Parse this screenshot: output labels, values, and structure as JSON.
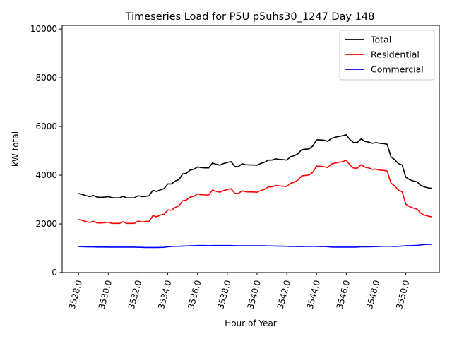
{
  "chart_data": {
    "type": "line",
    "title": "Timeseries Load for P5U p5uhs30_1247  Day 148",
    "xlabel": "Hour of Year",
    "ylabel": "kW total",
    "xlim": [
      3526.9,
      3552.25
    ],
    "ylim": [
      0,
      10150
    ],
    "x_start": 3528.0,
    "x_step": 0.25,
    "xticks": [
      3528.0,
      3530.0,
      3532.0,
      3534.0,
      3536.0,
      3538.0,
      3540.0,
      3542.0,
      3544.0,
      3546.0,
      3548.0,
      3550.0
    ],
    "xtick_labels": [
      "3528.0",
      "3530.0",
      "3532.0",
      "3534.0",
      "3536.0",
      "3538.0",
      "3540.0",
      "3542.0",
      "3544.0",
      "3546.0",
      "3548.0",
      "3550.0"
    ],
    "yticks": [
      0,
      2000,
      4000,
      6000,
      8000,
      10000
    ],
    "ytick_labels": [
      "0",
      "2000",
      "4000",
      "6000",
      "8000",
      "10000"
    ],
    "legend_position": "top-right",
    "series": [
      {
        "name": "Total",
        "color": "#000000",
        "values": [
          3250,
          3210,
          3160,
          3120,
          3170,
          3100,
          3090,
          3100,
          3120,
          3080,
          3070,
          3070,
          3130,
          3070,
          3070,
          3070,
          3160,
          3120,
          3130,
          3160,
          3380,
          3330,
          3400,
          3450,
          3640,
          3640,
          3760,
          3820,
          4050,
          4080,
          4210,
          4240,
          4340,
          4310,
          4300,
          4300,
          4500,
          4450,
          4410,
          4480,
          4520,
          4560,
          4360,
          4350,
          4470,
          4430,
          4420,
          4420,
          4410,
          4480,
          4530,
          4620,
          4620,
          4670,
          4650,
          4640,
          4620,
          4760,
          4800,
          4880,
          5050,
          5070,
          5080,
          5200,
          5450,
          5450,
          5440,
          5390,
          5510,
          5560,
          5590,
          5620,
          5660,
          5460,
          5340,
          5350,
          5490,
          5390,
          5360,
          5310,
          5340,
          5310,
          5300,
          5270,
          4760,
          4640,
          4480,
          4420,
          3920,
          3820,
          3760,
          3730,
          3580,
          3520,
          3480,
          3460
        ]
      },
      {
        "name": "Residential",
        "color": "#ff0000",
        "values": [
          2180,
          2140,
          2100,
          2060,
          2110,
          2040,
          2040,
          2050,
          2070,
          2020,
          2020,
          2020,
          2090,
          2020,
          2020,
          2020,
          2120,
          2080,
          2100,
          2110,
          2340,
          2290,
          2360,
          2400,
          2570,
          2560,
          2680,
          2740,
          2950,
          2980,
          3100,
          3130,
          3230,
          3200,
          3190,
          3190,
          3390,
          3340,
          3300,
          3370,
          3410,
          3450,
          3260,
          3250,
          3360,
          3320,
          3310,
          3310,
          3300,
          3370,
          3420,
          3520,
          3520,
          3580,
          3560,
          3550,
          3540,
          3670,
          3710,
          3800,
          3970,
          3990,
          4010,
          4120,
          4370,
          4370,
          4350,
          4310,
          4460,
          4500,
          4530,
          4560,
          4610,
          4410,
          4290,
          4290,
          4430,
          4330,
          4300,
          4240,
          4250,
          4210,
          4200,
          4170,
          3680,
          3560,
          3390,
          3320,
          2810,
          2710,
          2650,
          2610,
          2440,
          2360,
          2320,
          2290
        ]
      },
      {
        "name": "Commercial",
        "color": "#0000ff",
        "values": [
          1070,
          1065,
          1060,
          1055,
          1055,
          1050,
          1050,
          1050,
          1045,
          1045,
          1045,
          1045,
          1045,
          1045,
          1045,
          1045,
          1040,
          1040,
          1030,
          1030,
          1030,
          1030,
          1035,
          1040,
          1060,
          1075,
          1080,
          1080,
          1090,
          1095,
          1100,
          1105,
          1110,
          1110,
          1110,
          1105,
          1110,
          1110,
          1110,
          1110,
          1110,
          1110,
          1105,
          1100,
          1100,
          1100,
          1100,
          1100,
          1100,
          1100,
          1100,
          1095,
          1095,
          1090,
          1085,
          1085,
          1080,
          1075,
          1075,
          1070,
          1070,
          1075,
          1075,
          1080,
          1075,
          1070,
          1070,
          1065,
          1050,
          1045,
          1045,
          1045,
          1045,
          1045,
          1045,
          1050,
          1060,
          1060,
          1060,
          1065,
          1070,
          1075,
          1080,
          1080,
          1080,
          1075,
          1080,
          1090,
          1100,
          1105,
          1110,
          1120,
          1135,
          1150,
          1160,
          1165
        ]
      }
    ]
  }
}
